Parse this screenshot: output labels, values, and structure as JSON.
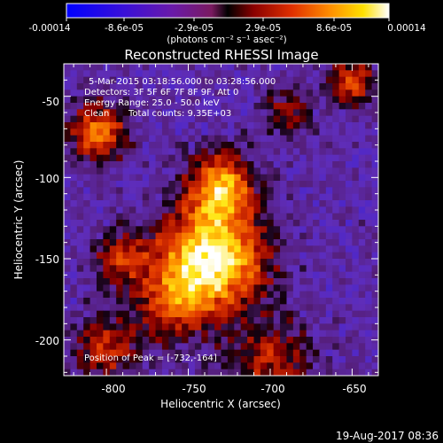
{
  "colorbar": {
    "ticks": [
      "-0.00014",
      "-8.6e-05",
      "-2.9e-05",
      "2.9e-05",
      "8.6e-05",
      "0.00014"
    ],
    "unit_label": "(photons cm⁻² s⁻¹ asec⁻²)"
  },
  "chart_data": {
    "type": "heatmap",
    "title": "Reconstructed RHESSI Image",
    "xlabel": "Heliocentric X (arcsec)",
    "ylabel": "Heliocentric Y (arcsec)",
    "xlim": [
      -826,
      -634
    ],
    "ylim": [
      -222,
      -30
    ],
    "xticks": [
      -800,
      -750,
      -700,
      -650
    ],
    "yticks": [
      -50,
      -100,
      -150,
      -200
    ],
    "color_range": [
      -0.00014,
      0.00014
    ],
    "colormap": "blue-purple-red-orange-yellow-white",
    "peak": {
      "x": -732,
      "y": -164
    },
    "annotations": {
      "time_range": "5-Mar-2015 03:18:56.000 to 03:28:56.000",
      "detectors": "Detectors: 3F 5F 6F 7F 8F 9F, Att 0",
      "energy": "Energy Range: 25.0 - 50.0 keV",
      "clean": "Clean",
      "counts": "Total counts: 9.35E+03",
      "peak_text": "Position of Peak = [-732,-164]"
    }
  },
  "timestamp": "19-Aug-2017 08:36"
}
